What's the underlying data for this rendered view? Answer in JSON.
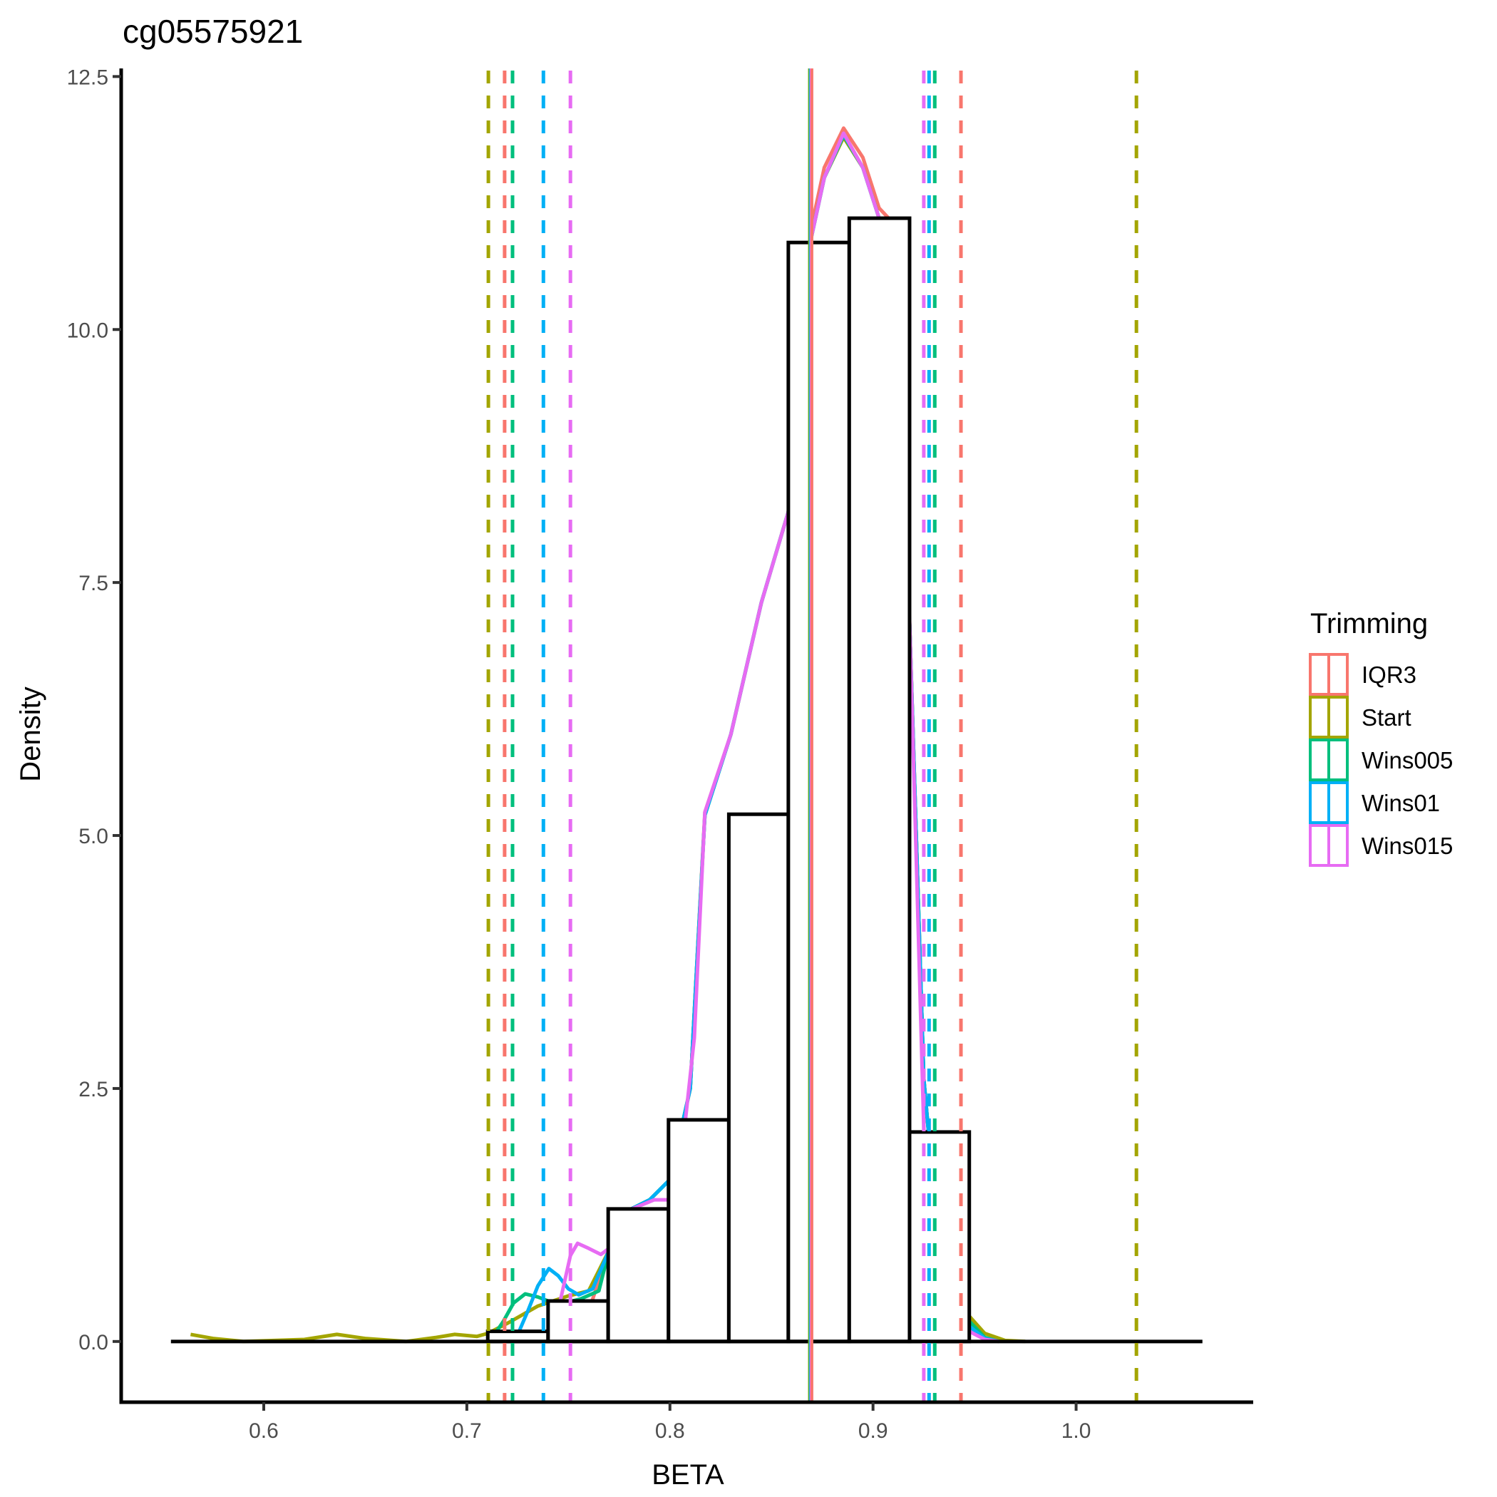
{
  "chart_data": {
    "type": "histogram-density",
    "title": "cg05575921",
    "xlabel": "BETA",
    "ylabel": "Density",
    "xlim": [
      0.5298,
      1.0872
    ],
    "ylim": [
      -0.6,
      12.58
    ],
    "x_ticks": [
      {
        "value": 0.6,
        "label": "0.6"
      },
      {
        "value": 0.7,
        "label": "0.7"
      },
      {
        "value": 0.8,
        "label": "0.8"
      },
      {
        "value": 0.9,
        "label": "0.9"
      },
      {
        "value": 1.0,
        "label": "1.0"
      }
    ],
    "y_ticks": [
      {
        "value": 0.0,
        "label": "0.0"
      },
      {
        "value": 2.5,
        "label": "2.5"
      },
      {
        "value": 5.0,
        "label": "5.0"
      },
      {
        "value": 7.5,
        "label": "7.5"
      },
      {
        "value": 10.0,
        "label": "10.0"
      },
      {
        "value": 12.5,
        "label": "12.5"
      }
    ],
    "grid": false,
    "baseline_range": [
      0.5543,
      1.0622
    ],
    "histogram": {
      "bins": [
        {
          "x0": 0.7103,
          "x1": 0.74,
          "density": 0.1
        },
        {
          "x0": 0.74,
          "x1": 0.7696,
          "density": 0.4
        },
        {
          "x0": 0.7696,
          "x1": 0.7993,
          "density": 1.31
        },
        {
          "x0": 0.7993,
          "x1": 0.829,
          "density": 2.19
        },
        {
          "x0": 0.829,
          "x1": 0.8583,
          "density": 5.21
        },
        {
          "x0": 0.8583,
          "x1": 0.8883,
          "density": 10.86
        },
        {
          "x0": 0.8883,
          "x1": 0.918,
          "density": 11.1
        },
        {
          "x0": 0.918,
          "x1": 0.9474,
          "density": 2.07
        }
      ],
      "fill": "#ffffff",
      "stroke": "#000000"
    },
    "legend": {
      "title": "Trimming",
      "position": "right"
    },
    "series": [
      {
        "name": "IQR3",
        "color": "#F8766D",
        "lower_cutoff": 0.7186,
        "upper_cutoff": 0.9433,
        "center_line": 0.8699,
        "density": [
          [
            0.7205,
            0
          ],
          [
            0.73,
            0.02
          ],
          [
            0.745,
            0.05
          ],
          [
            0.76,
            0.3
          ],
          [
            0.77,
            0.9
          ],
          [
            0.78,
            1.3
          ],
          [
            0.79,
            1.4
          ],
          [
            0.8,
            1.6
          ],
          [
            0.81,
            2.5
          ],
          [
            0.8172,
            5.23
          ],
          [
            0.83,
            6.0
          ],
          [
            0.845,
            7.3
          ],
          [
            0.8583,
            8.2
          ],
          [
            0.8695,
            11.0
          ],
          [
            0.876,
            11.6
          ],
          [
            0.8855,
            11.99
          ],
          [
            0.895,
            11.7
          ],
          [
            0.903,
            11.2
          ],
          [
            0.9077,
            11.1
          ],
          [
            0.918,
            7.12
          ],
          [
            0.925,
            2.6
          ],
          [
            0.932,
            1.0
          ],
          [
            0.94,
            0.4
          ],
          [
            0.9474,
            0.15
          ],
          [
            0.955,
            0.02
          ],
          [
            0.962,
            0
          ]
        ]
      },
      {
        "name": "Start",
        "color": "#A3A500",
        "lower_cutoff": 0.7106,
        "upper_cutoff": 1.0297,
        "center_line": 0.8687,
        "density": [
          [
            0.564,
            0.07
          ],
          [
            0.575,
            0.03
          ],
          [
            0.59,
            0.0
          ],
          [
            0.62,
            0.02
          ],
          [
            0.636,
            0.07
          ],
          [
            0.65,
            0.03
          ],
          [
            0.67,
            0.0
          ],
          [
            0.685,
            0.04
          ],
          [
            0.694,
            0.07
          ],
          [
            0.705,
            0.05
          ],
          [
            0.7103,
            0.08
          ],
          [
            0.72,
            0.18
          ],
          [
            0.735,
            0.35
          ],
          [
            0.75,
            0.45
          ],
          [
            0.76,
            0.5
          ],
          [
            0.77,
            0.9
          ],
          [
            0.78,
            1.3
          ],
          [
            0.79,
            1.4
          ],
          [
            0.8,
            1.6
          ],
          [
            0.81,
            2.5
          ],
          [
            0.8172,
            5.2
          ],
          [
            0.83,
            6.0
          ],
          [
            0.845,
            7.3
          ],
          [
            0.8583,
            8.2
          ],
          [
            0.8695,
            10.9
          ],
          [
            0.876,
            11.5
          ],
          [
            0.8855,
            11.9
          ],
          [
            0.895,
            11.6
          ],
          [
            0.903,
            11.1
          ],
          [
            0.9077,
            11.0
          ],
          [
            0.918,
            7.1
          ],
          [
            0.925,
            2.6
          ],
          [
            0.932,
            1.0
          ],
          [
            0.94,
            0.45
          ],
          [
            0.9474,
            0.25
          ],
          [
            0.955,
            0.08
          ],
          [
            0.965,
            0.01
          ],
          [
            0.975,
            0
          ]
        ]
      },
      {
        "name": "Wins005",
        "color": "#00BF7D",
        "lower_cutoff": 0.7225,
        "upper_cutoff": 0.9304,
        "center_line": 0.869,
        "density": [
          [
            0.7113,
            0
          ],
          [
            0.718,
            0.2
          ],
          [
            0.723,
            0.38
          ],
          [
            0.7287,
            0.47
          ],
          [
            0.735,
            0.44
          ],
          [
            0.74,
            0.4
          ],
          [
            0.748,
            0.38
          ],
          [
            0.756,
            0.42
          ],
          [
            0.765,
            0.5
          ],
          [
            0.77,
            0.9
          ],
          [
            0.78,
            1.3
          ],
          [
            0.79,
            1.4
          ],
          [
            0.8,
            1.6
          ],
          [
            0.81,
            2.5
          ],
          [
            0.8172,
            5.2
          ],
          [
            0.83,
            6.0
          ],
          [
            0.845,
            7.3
          ],
          [
            0.8583,
            8.2
          ],
          [
            0.8695,
            10.9
          ],
          [
            0.876,
            11.5
          ],
          [
            0.8855,
            11.92
          ],
          [
            0.895,
            11.6
          ],
          [
            0.903,
            11.1
          ],
          [
            0.9077,
            11.05
          ],
          [
            0.918,
            7.1
          ],
          [
            0.925,
            2.6
          ],
          [
            0.932,
            1.0
          ],
          [
            0.94,
            0.35
          ],
          [
            0.9474,
            0.2
          ],
          [
            0.955,
            0.04
          ],
          [
            0.962,
            0
          ]
        ]
      },
      {
        "name": "Wins01",
        "color": "#00B0F6",
        "lower_cutoff": 0.7377,
        "upper_cutoff": 0.9276,
        "center_line": 0.8693,
        "density": [
          [
            0.7236,
            0
          ],
          [
            0.73,
            0.3
          ],
          [
            0.735,
            0.55
          ],
          [
            0.7404,
            0.72
          ],
          [
            0.745,
            0.65
          ],
          [
            0.75,
            0.52
          ],
          [
            0.7551,
            0.46
          ],
          [
            0.762,
            0.52
          ],
          [
            0.77,
            0.9
          ],
          [
            0.78,
            1.3
          ],
          [
            0.79,
            1.4
          ],
          [
            0.8,
            1.6
          ],
          [
            0.81,
            2.5
          ],
          [
            0.8172,
            5.2
          ],
          [
            0.83,
            6.0
          ],
          [
            0.845,
            7.3
          ],
          [
            0.8583,
            8.2
          ],
          [
            0.8695,
            10.9
          ],
          [
            0.876,
            11.5
          ],
          [
            0.8855,
            11.93
          ],
          [
            0.895,
            11.6
          ],
          [
            0.903,
            11.1
          ],
          [
            0.9077,
            11.05
          ],
          [
            0.918,
            7.1
          ],
          [
            0.925,
            2.6
          ],
          [
            0.932,
            1.0
          ],
          [
            0.94,
            0.3
          ],
          [
            0.9474,
            0.15
          ],
          [
            0.955,
            0.03
          ],
          [
            0.962,
            0
          ]
        ]
      },
      {
        "name": "Wins015",
        "color": "#E76BF3",
        "lower_cutoff": 0.751,
        "upper_cutoff": 0.925,
        "center_line": 0.8695,
        "density": [
          [
            0.741,
            0
          ],
          [
            0.746,
            0.4
          ],
          [
            0.751,
            0.85
          ],
          [
            0.7545,
            0.97
          ],
          [
            0.76,
            0.92
          ],
          [
            0.766,
            0.86
          ],
          [
            0.772,
            0.95
          ],
          [
            0.78,
            1.3
          ],
          [
            0.7862,
            1.35
          ],
          [
            0.7923,
            1.4
          ],
          [
            0.7993,
            1.4
          ],
          [
            0.8077,
            2.2
          ],
          [
            0.812,
            3.0
          ],
          [
            0.8172,
            5.23
          ],
          [
            0.83,
            6.0
          ],
          [
            0.845,
            7.3
          ],
          [
            0.8583,
            8.2
          ],
          [
            0.8695,
            10.9
          ],
          [
            0.876,
            11.5
          ],
          [
            0.8855,
            11.94
          ],
          [
            0.895,
            11.6
          ],
          [
            0.903,
            11.1
          ],
          [
            0.9077,
            11.05
          ],
          [
            0.918,
            7.12
          ],
          [
            0.925,
            2.1
          ],
          [
            0.932,
            0.8
          ],
          [
            0.94,
            0.2
          ],
          [
            0.9474,
            0.1
          ],
          [
            0.955,
            0.02
          ],
          [
            0.962,
            0
          ]
        ]
      }
    ]
  }
}
